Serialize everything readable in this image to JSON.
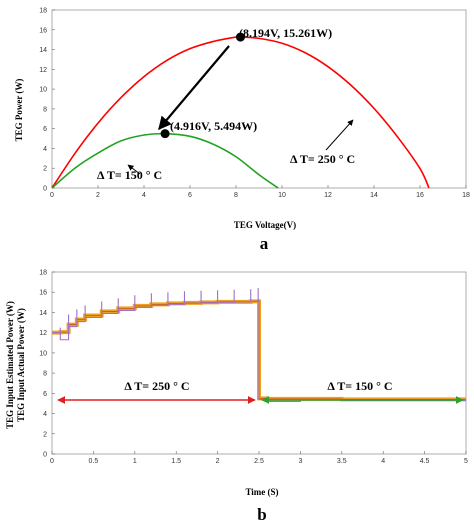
{
  "chart_data": [
    {
      "type": "line",
      "panel_label": "a",
      "xlabel": "TEG Voltage(V)",
      "ylabel": "TEG Power (W)",
      "xlim": [
        0,
        18
      ],
      "ylim": [
        0,
        18
      ],
      "xticks": [
        0,
        2,
        4,
        6,
        8,
        10,
        12,
        14,
        16,
        18
      ],
      "yticks": [
        0,
        2,
        4,
        6,
        8,
        10,
        12,
        14,
        16,
        18
      ],
      "grid": false,
      "colors": {
        "dT250": "#ff0000",
        "dT150": "#22a322"
      },
      "series": [
        {
          "name": "Δ T= 250 ° C",
          "x": [
            0,
            1,
            2,
            3,
            4,
            5,
            6,
            7,
            8,
            8.194,
            9,
            10,
            11,
            12,
            13,
            14,
            15,
            16,
            16.39
          ],
          "y": [
            0,
            3.51,
            6.56,
            9.14,
            11.26,
            12.91,
            14.09,
            14.81,
            15.26,
            15.261,
            15.13,
            14.64,
            13.69,
            12.27,
            10.39,
            8.05,
            5.24,
            1.97,
            0
          ]
        },
        {
          "name": "Δ T= 150 ° C",
          "x": [
            0,
            1,
            2,
            3,
            4,
            4.916,
            6,
            7,
            8,
            9,
            9.83
          ],
          "y": [
            0,
            2.01,
            3.53,
            4.76,
            5.36,
            5.494,
            5.23,
            4.44,
            3.16,
            1.34,
            0
          ]
        }
      ],
      "annotations": [
        {
          "text": "(8.194V, 15.261W)",
          "x": 8.194,
          "y": 15.261
        },
        {
          "text": "(4.916V, 5.494W)",
          "x": 4.916,
          "y": 5.494
        },
        {
          "text": "Δ T= 250 ° C"
        },
        {
          "text": "Δ T= 150 ° C"
        }
      ]
    },
    {
      "type": "line",
      "panel_label": "b",
      "xlabel": "Time (S)",
      "ylabel_lines": [
        "TEG Input Estimated Power (W)",
        "TEG Input Actual Power (W)"
      ],
      "xlim": [
        0,
        5
      ],
      "ylim": [
        0,
        18
      ],
      "xticks": [
        0,
        0.5,
        1,
        1.5,
        2,
        2.5,
        3,
        3.5,
        4,
        4.5,
        5
      ],
      "yticks": [
        0,
        2,
        4,
        6,
        8,
        10,
        12,
        14,
        16,
        18
      ],
      "grid": false,
      "colors": {
        "estimated": "#a070c8",
        "actual": "#f0a020",
        "actual_edge": "#c05a10",
        "arrow250": "#e02020",
        "arrow150": "#30a030"
      },
      "series": [
        {
          "key": "actual",
          "x": [
            0,
            0.1,
            0.2,
            0.3,
            0.4,
            0.6,
            0.8,
            1.0,
            1.2,
            1.4,
            1.6,
            1.8,
            2.0,
            2.2,
            2.4,
            2.49,
            2.5,
            2.6,
            3.0,
            3.5,
            4.0,
            4.5,
            5.0
          ],
          "y": [
            12.0,
            12.05,
            12.8,
            13.3,
            13.7,
            14.1,
            14.4,
            14.65,
            14.8,
            14.9,
            14.95,
            15.0,
            15.05,
            15.05,
            15.1,
            15.1,
            5.5,
            5.45,
            5.45,
            5.4,
            5.4,
            5.4,
            5.4
          ]
        },
        {
          "key": "estimated",
          "x": [
            0,
            0.1,
            0.2,
            0.3,
            0.4,
            0.6,
            0.8,
            1.0,
            1.2,
            1.4,
            1.6,
            1.8,
            2.0,
            2.2,
            2.4,
            2.49,
            2.5,
            2.6,
            3.0,
            3.5,
            4.0,
            4.5,
            5.0
          ],
          "y": [
            12.0,
            11.3,
            12.6,
            13.1,
            13.5,
            13.9,
            14.2,
            14.5,
            14.7,
            14.8,
            14.9,
            14.95,
            15.0,
            15.05,
            15.1,
            15.2,
            5.4,
            5.2,
            5.35,
            5.3,
            5.3,
            5.3,
            5.3
          ]
        }
      ],
      "annotations": [
        {
          "text": "Δ T= 250 ° C",
          "x_range": [
            0,
            2.5
          ],
          "y": 6
        },
        {
          "text": "Δ T= 150 ° C",
          "x_range": [
            2.5,
            5
          ],
          "y": 6
        }
      ]
    }
  ]
}
